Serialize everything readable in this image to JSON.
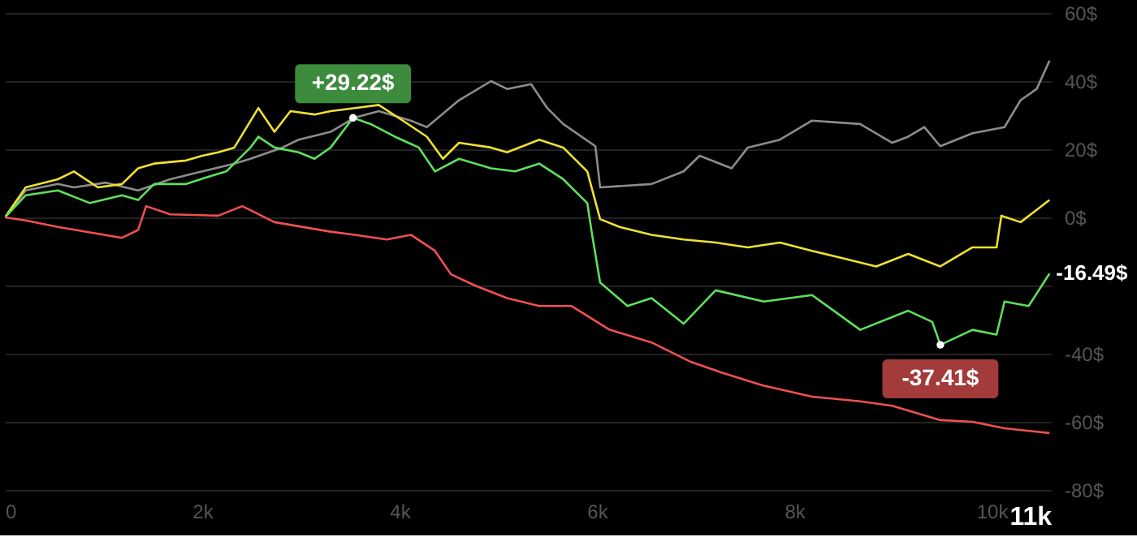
{
  "chart_data": {
    "type": "line",
    "xlim": [
      0,
      10600
    ],
    "xticks": [
      {
        "value": 0,
        "label": "0"
      },
      {
        "value": 2000,
        "label": "2k"
      },
      {
        "value": 4000,
        "label": "4k"
      },
      {
        "value": 6000,
        "label": "6k"
      },
      {
        "value": 8000,
        "label": "8k"
      },
      {
        "value": 10000,
        "label": "10k"
      },
      {
        "value": 10600,
        "label": "11k"
      }
    ],
    "ylim": [
      -80,
      60
    ],
    "yticks": [
      {
        "value": -80,
        "label": "-80$"
      },
      {
        "value": -60,
        "label": "-60$"
      },
      {
        "value": -40,
        "label": "-40$"
      },
      {
        "value": -20,
        "label": null
      },
      {
        "value": 0,
        "label": "0$"
      },
      {
        "value": 20,
        "label": "20$"
      },
      {
        "value": 40,
        "label": "40$"
      },
      {
        "value": 60,
        "label": "60$"
      }
    ],
    "grid": "y",
    "legend": false,
    "line_style": "solid",
    "series": [
      {
        "color": "#8c8c8c",
        "x": [
          0,
          211,
          537,
          699,
          1024,
          1350,
          1675,
          2000,
          2325,
          2488,
          2813,
          2976,
          3301,
          3545,
          3789,
          4114,
          4276,
          4602,
          4927,
          5089,
          5333,
          5496,
          5658,
          5984,
          6032,
          6553,
          6878,
          7040,
          7365,
          7528,
          7854,
          8179,
          8667,
          8992,
          9154,
          9317,
          9479,
          9805,
          10130,
          10293,
          10456,
          10586
        ],
        "values": [
          0,
          7.9,
          9.8,
          8.8,
          10.2,
          7.9,
          11.2,
          13.5,
          15.8,
          17.2,
          20.5,
          22.8,
          25.1,
          29.3,
          31.2,
          28.4,
          26.5,
          34.4,
          40,
          37.7,
          39.1,
          32.1,
          27.4,
          20.9,
          8.8,
          9.8,
          13.5,
          18.1,
          14.4,
          20.5,
          22.8,
          28.4,
          27.4,
          21.9,
          23.7,
          26.5,
          20.9,
          24.7,
          26.5,
          34.4,
          37.7,
          46
        ]
      },
      {
        "color": "#f0e130",
        "x": [
          0,
          211,
          537,
          699,
          943,
          1187,
          1350,
          1512,
          1837,
          2000,
          2163,
          2325,
          2569,
          2732,
          2894,
          3138,
          3301,
          3545,
          3789,
          4033,
          4276,
          4439,
          4602,
          4927,
          5089,
          5415,
          5658,
          5902,
          6032,
          6228,
          6553,
          6878,
          7203,
          7528,
          7854,
          8179,
          8504,
          8829,
          9154,
          9479,
          9805,
          10049,
          10098,
          10293,
          10586
        ],
        "values": [
          0,
          8.8,
          11.2,
          13.5,
          8.8,
          9.8,
          14.4,
          15.8,
          16.7,
          18.1,
          19.1,
          20.5,
          32.1,
          25.1,
          31.2,
          30.2,
          31.2,
          32.1,
          33,
          28.4,
          23.7,
          17.2,
          21.9,
          20.5,
          19.1,
          22.8,
          20.5,
          13.5,
          -0.5,
          -2.8,
          -5.1,
          -6.5,
          -7.4,
          -8.8,
          -7.4,
          -9.8,
          -12.1,
          -14.4,
          -10.7,
          -14.4,
          -8.8,
          -8.8,
          0.5,
          -1.4,
          5.1
        ]
      },
      {
        "color": "#5ee05e",
        "x": [
          0,
          211,
          537,
          862,
          1187,
          1350,
          1512,
          1837,
          2081,
          2244,
          2488,
          2569,
          2732,
          2976,
          3138,
          3301,
          3528,
          3707,
          3951,
          4195,
          4358,
          4602,
          4927,
          5171,
          5415,
          5658,
          5902,
          5951,
          6032,
          6309,
          6553,
          6878,
          7203,
          7691,
          8179,
          8667,
          9154,
          9398,
          9480,
          9805,
          10049,
          10130,
          10374,
          10586
        ],
        "values": [
          0,
          6.5,
          7.9,
          4.2,
          6.5,
          5.1,
          9.8,
          9.8,
          12.1,
          13.5,
          20.5,
          23.7,
          20.5,
          19.1,
          17.2,
          20.5,
          29.22,
          27.4,
          23.7,
          20.5,
          13.5,
          17.2,
          14.4,
          13.5,
          15.8,
          11.2,
          4.2,
          -5.1,
          -19.1,
          -26,
          -23.7,
          -31.2,
          -21.4,
          -24.7,
          -22.8,
          -33,
          -27.4,
          -30.7,
          -37.41,
          -33,
          -34.4,
          -24.7,
          -26,
          -16.49
        ]
      },
      {
        "color": "#f05050",
        "x": [
          0,
          211,
          537,
          1187,
          1350,
          1431,
          1675,
          2163,
          2406,
          2732,
          3301,
          3545,
          3870,
          4114,
          4358,
          4520,
          4764,
          5089,
          5415,
          5740,
          6130,
          6553,
          6943,
          7268,
          7675,
          8179,
          8667,
          8992,
          9480,
          9805,
          10130,
          10586
        ],
        "values": [
          0,
          -0.9,
          -2.8,
          -6,
          -3.7,
          3.3,
          0.9,
          0.5,
          3.3,
          -1.4,
          -4.2,
          -5.1,
          -6.5,
          -5.1,
          -9.8,
          -16.7,
          -20,
          -23.7,
          -26,
          -26,
          -33,
          -36.7,
          -42.3,
          -45.6,
          -49.3,
          -52.6,
          -54,
          -55.3,
          -59.5,
          -60,
          -61.9,
          -63.3
        ]
      }
    ],
    "annotations": [
      {
        "text": "+29.22$",
        "x": 3528,
        "y": 29.22
      },
      {
        "text": "-37.41$",
        "x": 9480,
        "y": -37.41
      },
      {
        "text": "-16.49$",
        "x": 10586,
        "y": -16.49
      }
    ]
  }
}
